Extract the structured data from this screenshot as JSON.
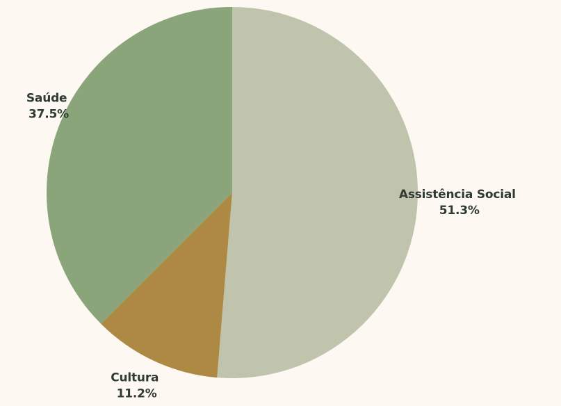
{
  "chart_data": {
    "type": "pie",
    "title": "",
    "legend": "none",
    "slices": [
      {
        "label": "Assistência Social",
        "value": 51.3,
        "value_label": "51.3%",
        "color": "#c0c4ad"
      },
      {
        "label": "Cultura",
        "value": 11.2,
        "value_label": "11.2%",
        "color": "#ad8943"
      },
      {
        "label": "Saúde",
        "value": 37.5,
        "value_label": "37.5%",
        "color": "#8ba57b"
      }
    ]
  },
  "background_color": "#fdf8f2"
}
